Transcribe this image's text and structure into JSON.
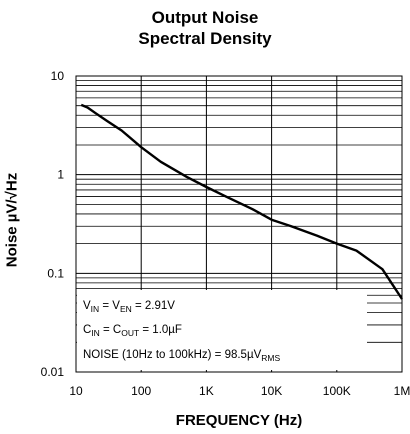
{
  "chart_data": {
    "type": "line",
    "title_line1": "Output Noise",
    "title_line2": "Spectral Density",
    "xlabel": "FREQUENCY (Hz)",
    "ylabel": "Noise µV/√Hz",
    "x_scale": "log",
    "y_scale": "log",
    "xlim": [
      10,
      1000000
    ],
    "ylim": [
      0.01,
      10
    ],
    "grid": true,
    "x_ticks": [
      "10",
      "100",
      "1K",
      "10K",
      "100K",
      "1M"
    ],
    "y_ticks": [
      "10",
      "1",
      "0.1",
      "0.01"
    ],
    "series": [
      {
        "x": [
          12,
          15,
          20,
          30,
          50,
          100,
          200,
          500,
          1000,
          2000,
          5000,
          10000,
          20000,
          50000,
          100000,
          200000,
          500000,
          1000000
        ],
        "y": [
          5.1,
          4.8,
          4.2,
          3.5,
          2.8,
          1.9,
          1.35,
          0.95,
          0.75,
          0.6,
          0.45,
          0.35,
          0.3,
          0.24,
          0.2,
          0.17,
          0.11,
          0.055
        ]
      }
    ],
    "annotations": {
      "line1": {
        "a": "V",
        "a_sub": "IN",
        "b": " = V",
        "b_sub": "EN",
        "c": " = 2.91V"
      },
      "line2": {
        "a": "C",
        "a_sub": "IN",
        "b": " = C",
        "b_sub": "OUT",
        "c": " = 1.0µF"
      },
      "line3": {
        "a": "NOISE (10Hz to 100kHz) = 98.5µV",
        "a_sub": "RMS"
      }
    }
  }
}
